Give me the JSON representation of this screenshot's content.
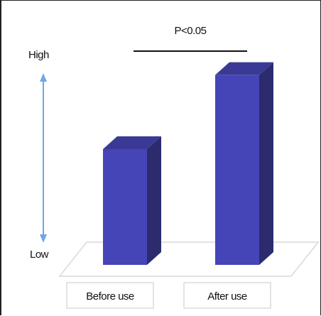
{
  "chart_data": {
    "type": "bar",
    "categories": [
      "Before use",
      "After use"
    ],
    "values": [
      5.0,
      8.2
    ],
    "ylim": [
      0,
      10
    ],
    "ylabel_high": "High",
    "ylabel_low": "Low",
    "significance": {
      "label": "P<0.05",
      "between": [
        0,
        1
      ]
    },
    "grid": false,
    "colors": {
      "bar_front": "#4545b8",
      "bar_top": "#3a3a96",
      "bar_side": "#2b2b6e",
      "arrow": "#6ea8e6",
      "floor": "#d9d9d9"
    }
  }
}
